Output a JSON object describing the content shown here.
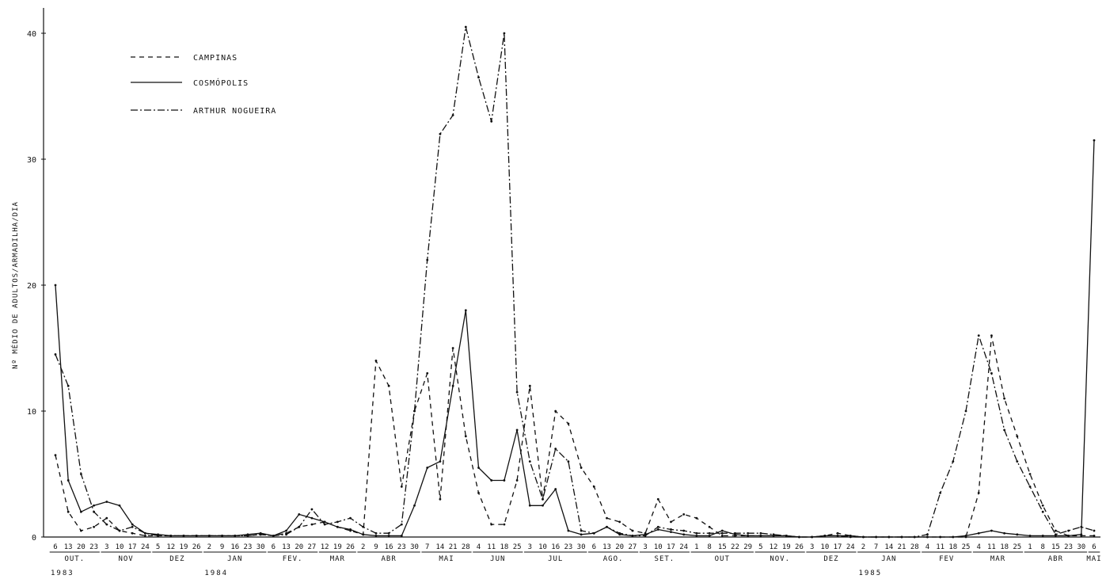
{
  "chart_data": {
    "type": "line",
    "ylabel": "Nº MÉDIO DE ADULTOS/ARMADILHA/DIA",
    "ylim": [
      0,
      41
    ],
    "yticks": [
      0,
      10,
      20,
      30,
      40
    ],
    "grid": false,
    "legend_position": "top-left",
    "categories": [
      "6",
      "13",
      "20",
      "23",
      "3",
      "10",
      "17",
      "24",
      "5",
      "12",
      "19",
      "26",
      "2",
      "9",
      "16",
      "23",
      "30",
      "6",
      "13",
      "20",
      "27",
      "12",
      "19",
      "26",
      "2",
      "9",
      "16",
      "23",
      "30",
      "7",
      "14",
      "21",
      "28",
      "4",
      "11",
      "18",
      "25",
      "3",
      "10",
      "16",
      "23",
      "30",
      "6",
      "13",
      "20",
      "27",
      "3",
      "10",
      "17",
      "24",
      "1",
      "8",
      "15",
      "22",
      "29",
      "5",
      "12",
      "19",
      "26",
      "3",
      "10",
      "17",
      "24",
      "2",
      "7",
      "14",
      "21",
      "28",
      "4",
      "11",
      "18",
      "25",
      "4",
      "11",
      "18",
      "25",
      "1",
      "8",
      "15",
      "23",
      "30",
      "6"
    ],
    "months": [
      {
        "label": "OUT.",
        "start": 0,
        "end": 3
      },
      {
        "label": "NOV",
        "start": 4,
        "end": 7
      },
      {
        "label": "DEZ",
        "start": 8,
        "end": 11
      },
      {
        "label": "JAN",
        "start": 12,
        "end": 16
      },
      {
        "label": "FEV.",
        "start": 17,
        "end": 20
      },
      {
        "label": "MAR",
        "start": 21,
        "end": 23
      },
      {
        "label": "ABR",
        "start": 24,
        "end": 28
      },
      {
        "label": "MAI",
        "start": 29,
        "end": 32
      },
      {
        "label": "JUN",
        "start": 33,
        "end": 36
      },
      {
        "label": "JUL",
        "start": 37,
        "end": 41
      },
      {
        "label": "AGO.",
        "start": 42,
        "end": 45
      },
      {
        "label": "SET.",
        "start": 46,
        "end": 49
      },
      {
        "label": "OUT",
        "start": 50,
        "end": 54
      },
      {
        "label": "NOV.",
        "start": 55,
        "end": 58
      },
      {
        "label": "DEZ",
        "start": 59,
        "end": 62
      },
      {
        "label": "JAN",
        "start": 63,
        "end": 67
      },
      {
        "label": "FEV",
        "start": 68,
        "end": 71
      },
      {
        "label": "MAR",
        "start": 72,
        "end": 75
      },
      {
        "label": "ABR",
        "start": 76,
        "end": 80
      },
      {
        "label": "MAI",
        "start": 81,
        "end": 81
      }
    ],
    "years": [
      {
        "label": "1983",
        "index": 0
      },
      {
        "label": "1984",
        "index": 12
      },
      {
        "label": "1985",
        "index": 63
      }
    ],
    "series": [
      {
        "name": "CAMPINAS",
        "dash": "6,5",
        "values": [
          6.5,
          2.0,
          0.5,
          0.8,
          1.5,
          0.5,
          0.3,
          0.1,
          0.1,
          0.1,
          0.1,
          0.1,
          0.1,
          0.1,
          0.1,
          0.1,
          0.2,
          0.1,
          0.3,
          0.8,
          1.0,
          1.2,
          0.8,
          0.5,
          0.2,
          14.0,
          12.0,
          4.0,
          10.0,
          13.0,
          3.0,
          15.0,
          8.0,
          3.5,
          1.0,
          1.0,
          4.5,
          12.0,
          3.0,
          10.0,
          9.0,
          5.5,
          4.0,
          1.5,
          1.2,
          0.5,
          0.3,
          3.0,
          1.2,
          1.8,
          1.5,
          0.8,
          0.1,
          0.1,
          0.1,
          0.1,
          0.1,
          0.1,
          0.0,
          0.0,
          0.1,
          0.3,
          0.1,
          0.0,
          0.0,
          0.0,
          0.0,
          0.0,
          0.0,
          0.0,
          0.0,
          0.0,
          3.5,
          16.0,
          11.0,
          8.0,
          5.0,
          2.5,
          0.5,
          0.1,
          0.1,
          0.1
        ]
      },
      {
        "name": "COSMÓPOLIS",
        "dash": "",
        "values": [
          20.0,
          4.5,
          2.0,
          2.5,
          2.8,
          2.5,
          1.0,
          0.3,
          0.2,
          0.1,
          0.1,
          0.1,
          0.1,
          0.1,
          0.1,
          0.2,
          0.3,
          0.1,
          0.5,
          1.8,
          1.5,
          1.2,
          0.8,
          0.6,
          0.2,
          0.1,
          0.1,
          0.1,
          2.5,
          5.5,
          6.0,
          12.0,
          18.0,
          5.5,
          4.5,
          4.5,
          8.5,
          2.5,
          2.5,
          3.8,
          0.5,
          0.2,
          0.3,
          0.8,
          0.2,
          0.1,
          0.2,
          0.6,
          0.4,
          0.2,
          0.1,
          0.1,
          0.5,
          0.2,
          0.1,
          0.1,
          0.1,
          0.1,
          0.0,
          0.0,
          0.1,
          0.1,
          0.1,
          0.0,
          0.0,
          0.0,
          0.0,
          0.0,
          0.0,
          0.0,
          0.0,
          0.1,
          0.3,
          0.5,
          0.3,
          0.2,
          0.1,
          0.1,
          0.1,
          0.1,
          0.2,
          31.5
        ]
      },
      {
        "name": "ARTHUR NOGUEIRA",
        "dash": "9,3,2,3",
        "values": [
          14.5,
          12.0,
          5.0,
          2.0,
          1.0,
          0.5,
          0.8,
          0.3,
          0.1,
          0.1,
          0.1,
          0.1,
          0.1,
          0.1,
          0.1,
          0.1,
          0.2,
          0.1,
          0.2,
          0.8,
          2.2,
          1.0,
          1.2,
          1.5,
          0.8,
          0.3,
          0.3,
          1.0,
          10.0,
          22.0,
          32.0,
          33.5,
          40.5,
          36.5,
          33.0,
          40.0,
          11.5,
          6.0,
          3.0,
          7.0,
          6.0,
          0.5,
          0.3,
          0.8,
          0.3,
          0.1,
          0.1,
          0.8,
          0.6,
          0.5,
          0.3,
          0.3,
          0.3,
          0.3,
          0.3,
          0.3,
          0.2,
          0.1,
          0.0,
          0.0,
          0.1,
          0.1,
          0.0,
          0.0,
          0.0,
          0.0,
          0.0,
          0.0,
          0.2,
          3.5,
          6.0,
          10.0,
          16.0,
          13.0,
          8.5,
          6.0,
          4.0,
          2.0,
          0.2,
          0.5,
          0.8,
          0.5
        ]
      }
    ]
  }
}
